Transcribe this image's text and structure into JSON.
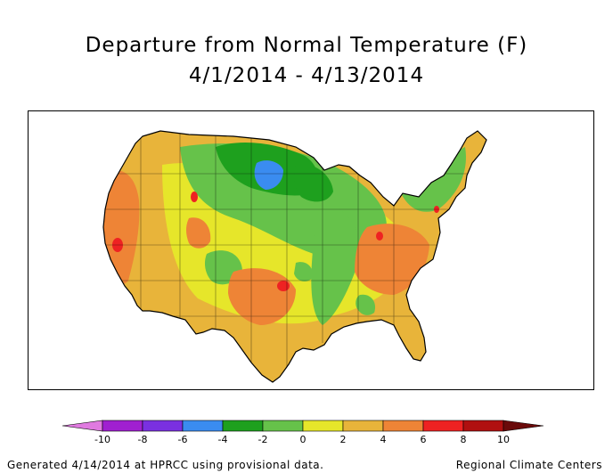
{
  "title": {
    "line1": "Departure from Normal Temperature (F)",
    "line2": "4/1/2014 - 4/13/2014"
  },
  "legend": {
    "ticks": [
      "-10",
      "-8",
      "-6",
      "-4",
      "-2",
      "0",
      "2",
      "4",
      "6",
      "8",
      "10"
    ],
    "bins": [
      {
        "color": "#e07ae0",
        "from": -12,
        "to": -10
      },
      {
        "color": "#a020d0",
        "from": -10,
        "to": -8
      },
      {
        "color": "#7a30e0",
        "from": -8,
        "to": -6
      },
      {
        "color": "#3a8cf0",
        "from": -6,
        "to": -4
      },
      {
        "color": "#1ea01e",
        "from": -4,
        "to": -2
      },
      {
        "color": "#66c24a",
        "from": -2,
        "to": 0
      },
      {
        "color": "#e6e62a",
        "from": 0,
        "to": 2
      },
      {
        "color": "#e8b43a",
        "from": 2,
        "to": 4
      },
      {
        "color": "#ee8436",
        "from": 4,
        "to": 6
      },
      {
        "color": "#ee2222",
        "from": 6,
        "to": 8
      },
      {
        "color": "#b01010",
        "from": 8,
        "to": 10
      },
      {
        "color": "#6a0a0a",
        "from": 10,
        "to": 12
      }
    ]
  },
  "map_colors": {
    "orange": "#ee8436",
    "light_orange": "#e8b43a",
    "yellow": "#e6e62a",
    "light_green": "#66c24a",
    "green": "#1ea01e",
    "blue": "#3a8cf0",
    "red": "#ee2222"
  },
  "footer": {
    "left": "Generated 4/14/2014 at HPRCC using provisional data.",
    "right": "Regional Climate Centers"
  }
}
